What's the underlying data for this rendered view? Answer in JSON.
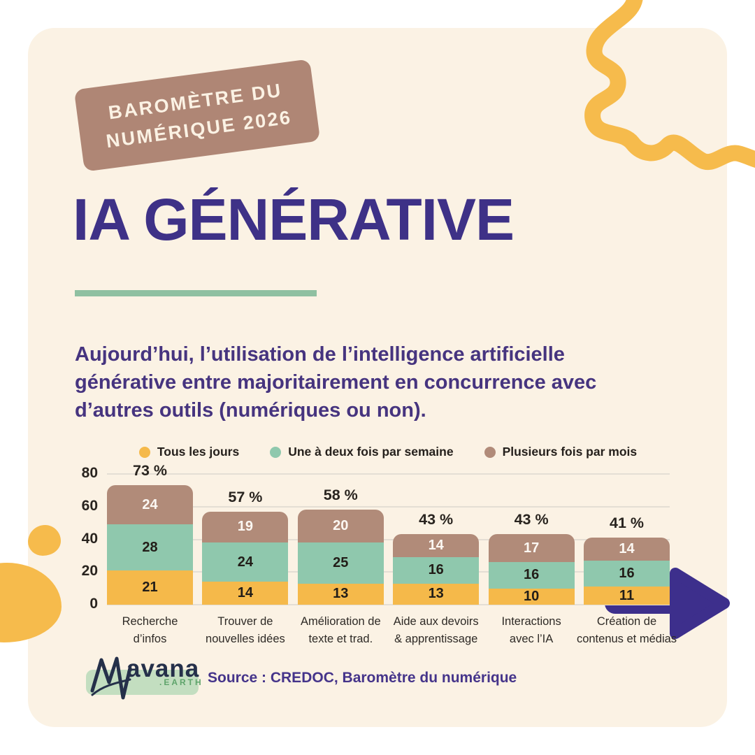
{
  "badge": {
    "line1": "BAROMÈTRE DU",
    "line2": "NUMÉRIQUE 2026"
  },
  "title": "IA GÉNÉRATIVE",
  "intro": {
    "lines": [
      "Aujourd’hui, l’utilisation de l’intelligence artificielle",
      "générative entre majoritairement en concurrence avec",
      "d’autres outils (numériques ou non)."
    ]
  },
  "chart_data": {
    "type": "bar",
    "stacked": true,
    "categories": [
      "Recherche d’infos",
      "Trouver de nouvelles idées",
      "Amélioration de texte et trad.",
      "Aide aux devoirs & apprentissage",
      "Interactions avec l’IA",
      "Création de contenus et médias"
    ],
    "category_lines": [
      [
        "Recherche",
        "d’infos"
      ],
      [
        "Trouver de",
        "nouvelles idées"
      ],
      [
        "Amélioration de",
        "texte et trad."
      ],
      [
        "Aide aux devoirs",
        "& apprentissage"
      ],
      [
        "Interactions",
        "avec l’IA"
      ],
      [
        "Création de",
        "contenus et médias"
      ]
    ],
    "series": [
      {
        "name": "Tous les jours",
        "color": "#F5B94A",
        "label_color": "#221D18",
        "values": [
          21,
          14,
          13,
          13,
          10,
          11
        ]
      },
      {
        "name": "Une à deux fois par semaine",
        "color": "#8FC8AD",
        "label_color": "#221D18",
        "values": [
          28,
          24,
          25,
          16,
          16,
          16
        ]
      },
      {
        "name": "Plusieurs fois par mois",
        "color": "#B18B79",
        "label_color": "#FCF8F3",
        "values": [
          24,
          19,
          20,
          14,
          17,
          14
        ]
      }
    ],
    "totals": [
      73,
      57,
      58,
      43,
      43,
      41
    ],
    "total_labels": [
      "73 %",
      "57 %",
      "58 %",
      "43 %",
      "43 %",
      "41 %"
    ],
    "ylim": [
      0,
      80
    ],
    "yticks": [
      0,
      20,
      40,
      60,
      80
    ],
    "grid": true,
    "legend_position": "top"
  },
  "footer": {
    "logo_word": "avana",
    "logo_domain": ".EARTH",
    "source": "Source : CREDOC, Baromètre du numérique"
  },
  "colors": {
    "card_bg": "#FBF2E4",
    "badge_bg": "#AF8675",
    "title": "#3E3187",
    "underline": "#8FC0A1",
    "accent_yellow": "#F6BB4C",
    "arrow_purple": "#3D2F8C"
  }
}
